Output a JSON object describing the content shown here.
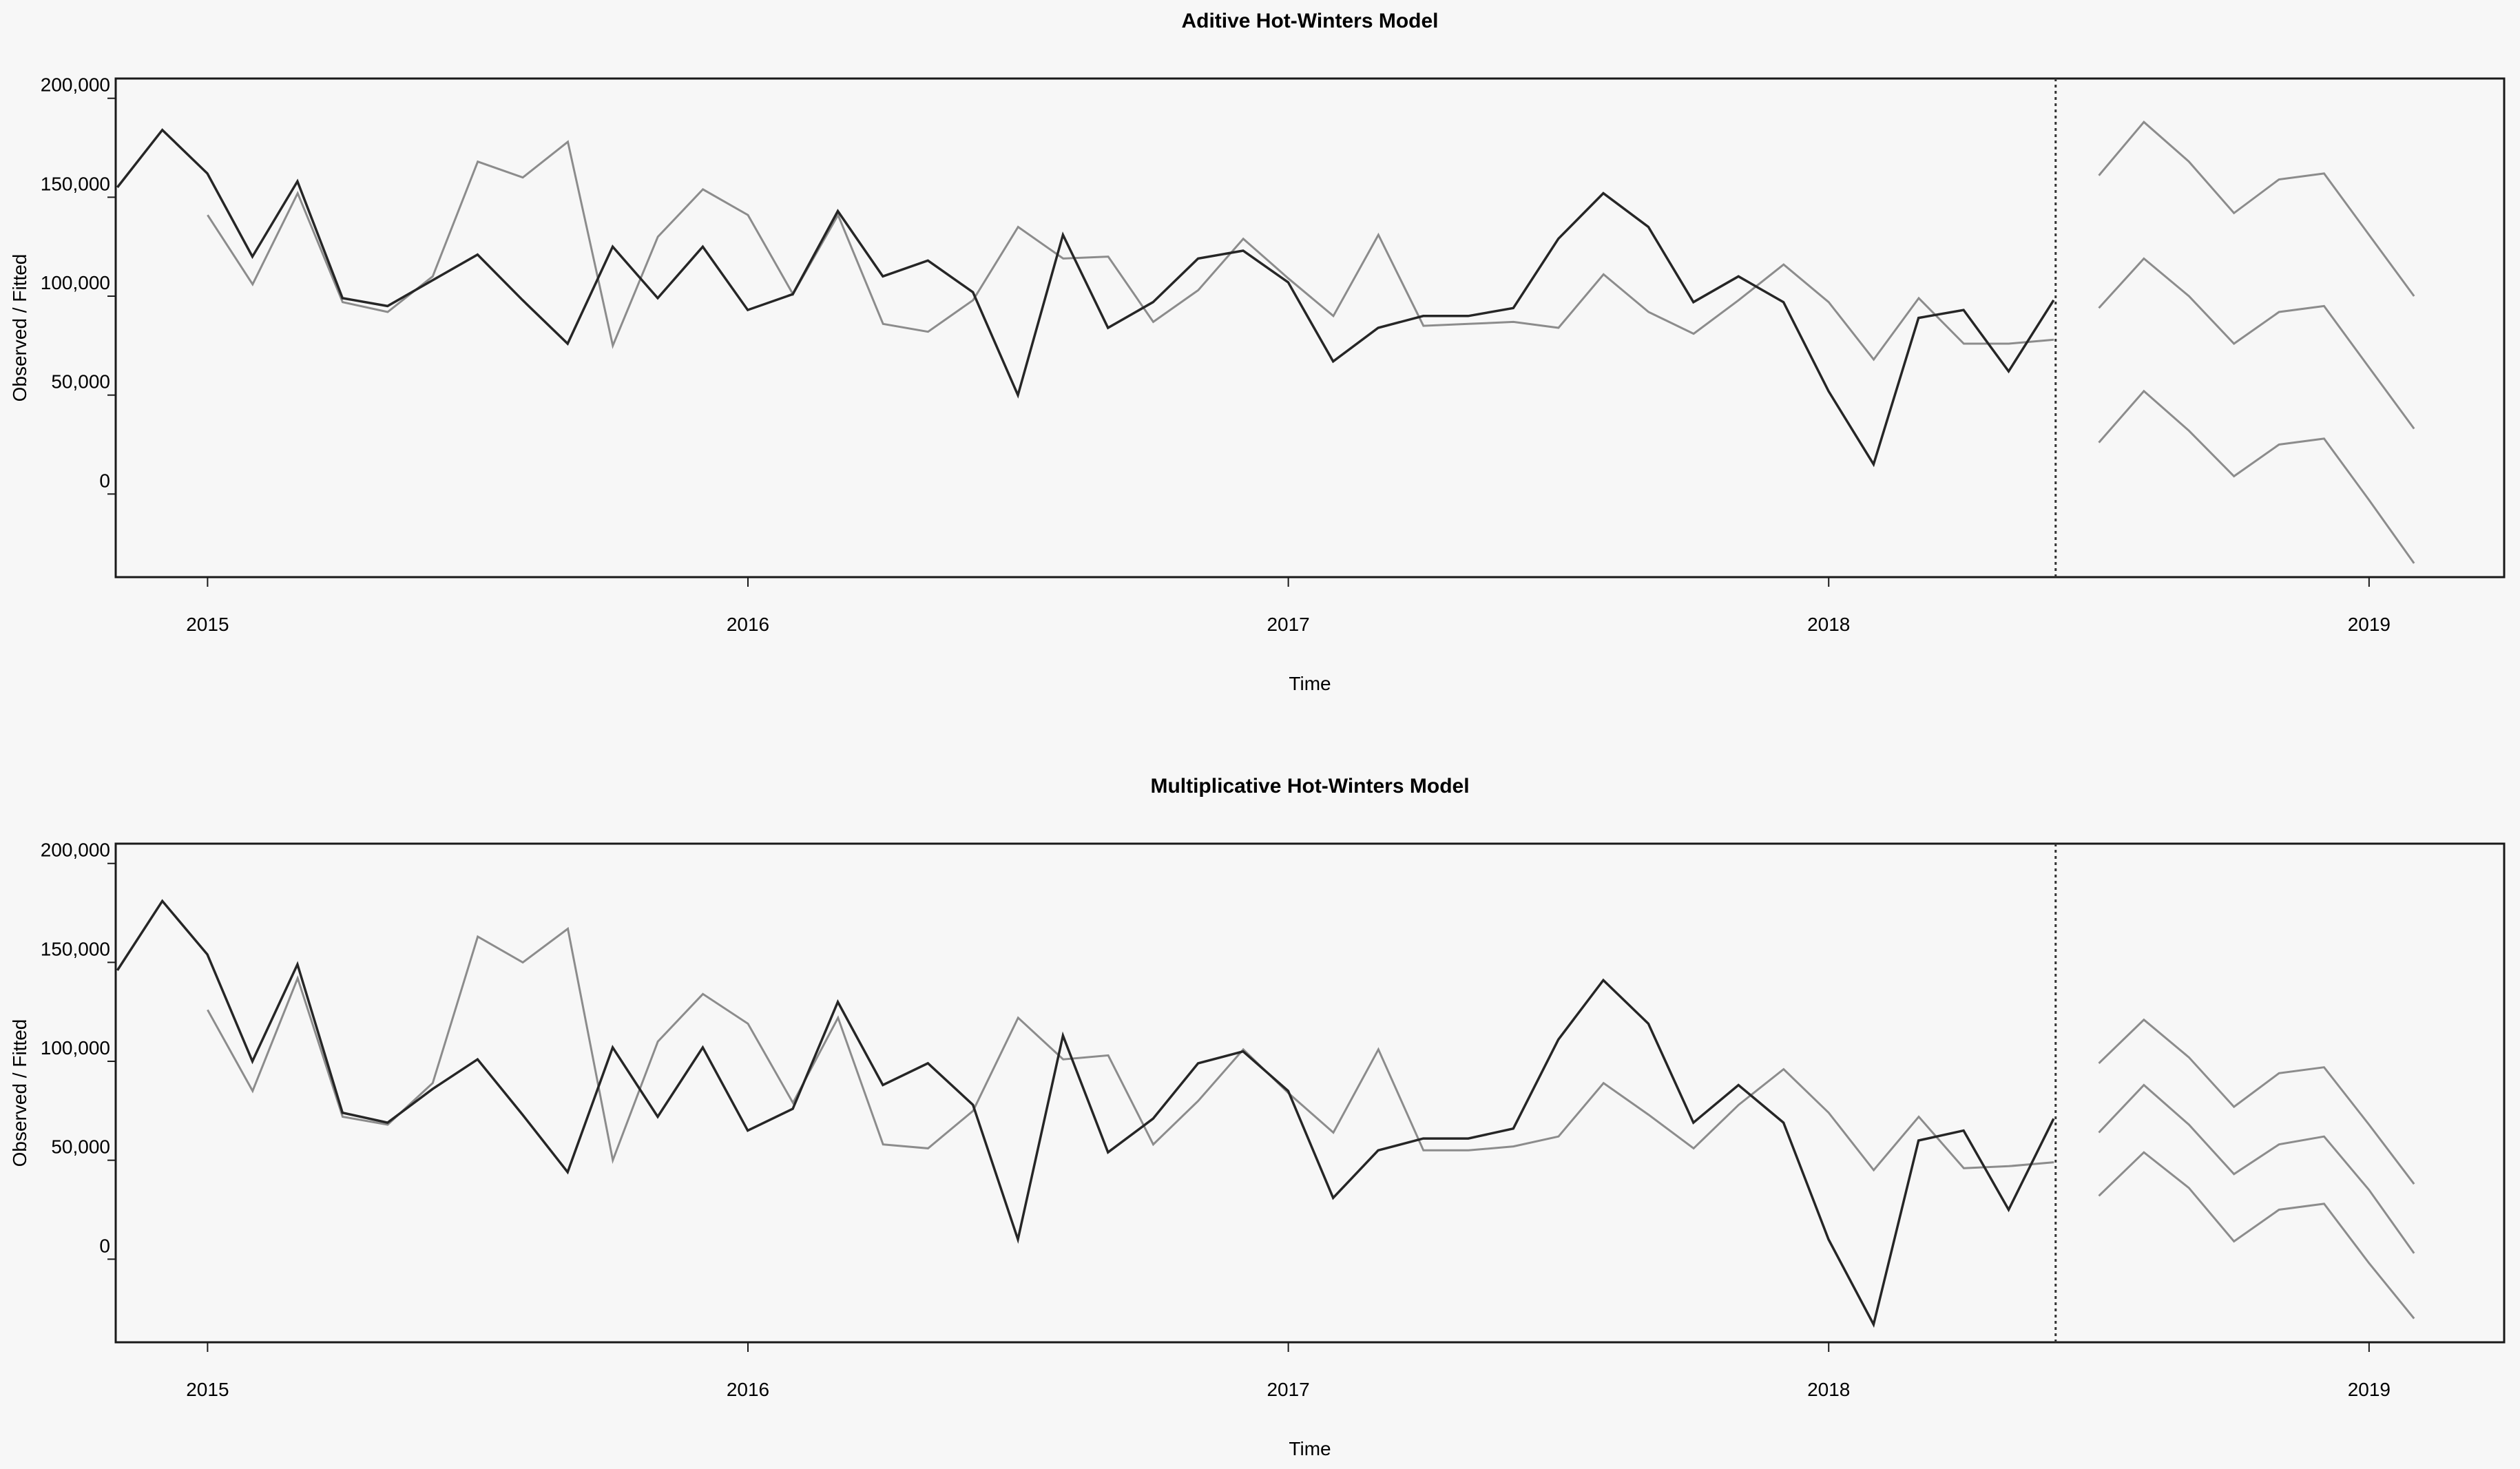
{
  "chart_data": [
    {
      "type": "line",
      "title": "Aditive Hot-Winters Model",
      "xlabel": "Time",
      "ylabel": "Observed / Fitted",
      "xlim": [
        2014.83,
        2019.25
      ],
      "ylim": [
        -42000,
        210000
      ],
      "x_ticks": [
        "2015",
        "2016",
        "2017",
        "2018",
        "2019"
      ],
      "y_ticks": [
        "0",
        "50,000",
        "100,000",
        "150,000",
        "200,000"
      ],
      "forecast_start": 2018.42,
      "grid": false,
      "series": [
        {
          "role": "observed",
          "x_start": 2014.833,
          "step": 0.0833333,
          "values": [
            155000,
            184000,
            162000,
            120000,
            158000,
            99000,
            95000,
            108000,
            121000,
            98000,
            76000,
            125000,
            99000,
            125000,
            93000,
            101000,
            143000,
            110000,
            118000,
            102000,
            50000,
            131000,
            84000,
            97000,
            119000,
            123000,
            107000,
            67000,
            84000,
            90000,
            90000,
            94000,
            129000,
            152000,
            135000,
            97000,
            110000,
            97000,
            52000,
            15000,
            89000,
            93000,
            62000,
            98000
          ]
        },
        {
          "role": "fitted",
          "x_start": 2015.0,
          "step": 0.0833333,
          "values": [
            141000,
            106000,
            152000,
            97000,
            92000,
            110000,
            168000,
            160000,
            178000,
            75000,
            130000,
            154000,
            141000,
            101000,
            141000,
            86000,
            82000,
            98000,
            135000,
            119000,
            120000,
            87000,
            103000,
            129000,
            109000,
            90000,
            131000,
            85000,
            86000,
            87000,
            84000,
            111000,
            92000,
            81000,
            98000,
            116000,
            97000,
            68000,
            99000,
            76000,
            76000,
            78000
          ]
        },
        {
          "role": "forecast",
          "x_start": 2018.5,
          "step": 0.0833333,
          "values": [
            94000,
            119000,
            100000,
            76000,
            92000,
            95000,
            64000,
            33000
          ]
        },
        {
          "role": "upper-interval",
          "x_start": 2018.5,
          "step": 0.0833333,
          "values": [
            161000,
            188000,
            168000,
            142000,
            159000,
            162000,
            131000,
            100000
          ]
        },
        {
          "role": "lower-interval",
          "x_start": 2018.5,
          "step": 0.0833333,
          "values": [
            26000,
            52000,
            32000,
            9000,
            25000,
            28000,
            -3000,
            -35000
          ]
        }
      ]
    },
    {
      "type": "line",
      "title": "Multiplicative Hot-Winters Model",
      "xlabel": "Time",
      "ylabel": "Observed / Fitted",
      "xlim": [
        2014.83,
        2019.25
      ],
      "ylim": [
        -42000,
        210000
      ],
      "x_ticks": [
        "2015",
        "2016",
        "2017",
        "2018",
        "2019"
      ],
      "y_ticks": [
        "0",
        "50,000",
        "100,000",
        "150,000",
        "200,000"
      ],
      "forecast_start": 2018.42,
      "grid": false,
      "series": [
        {
          "role": "observed",
          "x_start": 2014.833,
          "step": 0.0833333,
          "values": [
            146000,
            181000,
            154000,
            100000,
            149000,
            74000,
            69000,
            86000,
            101000,
            73000,
            44000,
            107000,
            72000,
            107000,
            65000,
            76000,
            130000,
            88000,
            99000,
            78000,
            10000,
            113000,
            54000,
            71000,
            99000,
            105000,
            85000,
            31000,
            55000,
            61000,
            61000,
            66000,
            111000,
            141000,
            119000,
            69000,
            88000,
            69000,
            10000,
            -33000,
            60000,
            65000,
            25000,
            71000
          ]
        },
        {
          "role": "fitted",
          "x_start": 2015.0,
          "step": 0.0833333,
          "values": [
            126000,
            85000,
            142000,
            72000,
            68000,
            89000,
            163000,
            150000,
            167000,
            50000,
            110000,
            134000,
            119000,
            79000,
            122000,
            58000,
            56000,
            75000,
            122000,
            101000,
            103000,
            58000,
            80000,
            106000,
            84000,
            64000,
            106000,
            55000,
            55000,
            57000,
            62000,
            89000,
            73000,
            56000,
            78000,
            96000,
            74000,
            45000,
            72000,
            46000,
            47000,
            49000
          ]
        },
        {
          "role": "forecast",
          "x_start": 2018.5,
          "step": 0.0833333,
          "values": [
            64000,
            88000,
            68000,
            43000,
            58000,
            62000,
            35000,
            3000
          ]
        },
        {
          "role": "upper-interval",
          "x_start": 2018.5,
          "step": 0.0833333,
          "values": [
            99000,
            121000,
            102000,
            77000,
            94000,
            97000,
            68000,
            38000
          ]
        },
        {
          "role": "lower-interval",
          "x_start": 2018.5,
          "step": 0.0833333,
          "values": [
            32000,
            54000,
            36000,
            9000,
            25000,
            28000,
            -2000,
            -30000
          ]
        }
      ]
    }
  ],
  "colors": {
    "observed": "#262626",
    "fitted": "#8c8c8c",
    "interval": "#8c8c8c",
    "frame": "#1a1a1a",
    "background": "#f7f7f7"
  }
}
